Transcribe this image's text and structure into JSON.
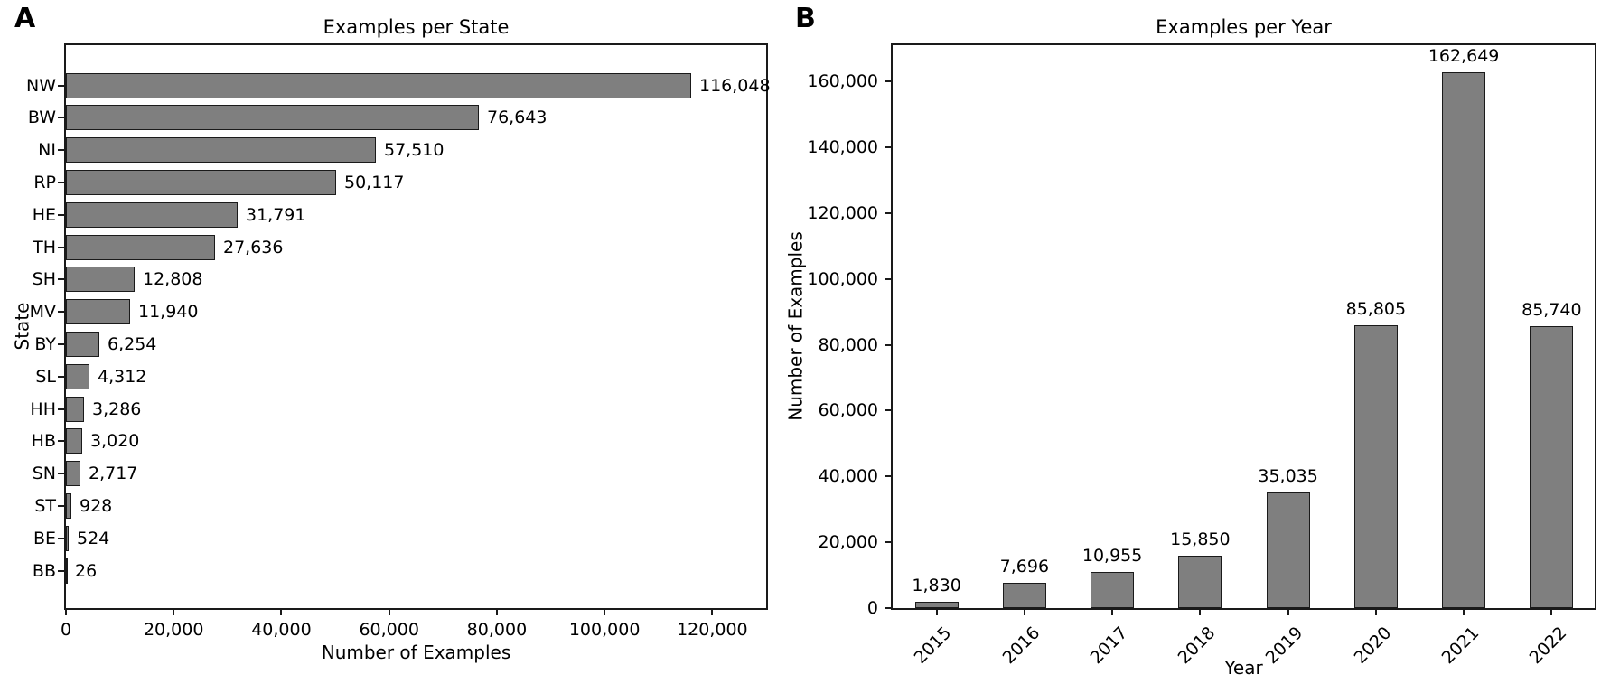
{
  "colors": {
    "background": "#ffffff",
    "bar_fill": "#7f7f7f",
    "bar_edge": "#1a1a1a",
    "axis": "#1a1a1a",
    "text": "#000000"
  },
  "chart_data": [
    {
      "id": "examples-per-state",
      "panel_label": "A",
      "type": "bar",
      "orientation": "horizontal",
      "title": "Examples per State",
      "xlabel": "Number of Examples",
      "ylabel": "State",
      "categories": [
        "NW",
        "BW",
        "NI",
        "RP",
        "HE",
        "TH",
        "SH",
        "MV",
        "BY",
        "SL",
        "HH",
        "HB",
        "SN",
        "ST",
        "BE",
        "BB"
      ],
      "values": [
        116048,
        76643,
        57510,
        50117,
        31791,
        27636,
        12808,
        11940,
        6254,
        4312,
        3286,
        3020,
        2717,
        928,
        524,
        26
      ],
      "value_labels": [
        "116,048",
        "76,643",
        "57,510",
        "50,117",
        "31,791",
        "27,636",
        "12,808",
        "11,940",
        "6,254",
        "4,312",
        "3,286",
        "3,020",
        "2,717",
        "928",
        "524",
        "26"
      ],
      "xlim": [
        0,
        130000
      ],
      "xticks": [
        0,
        20000,
        40000,
        60000,
        80000,
        100000,
        120000
      ],
      "xtick_labels": [
        "0",
        "20,000",
        "40,000",
        "60,000",
        "80,000",
        "100,000",
        "120,000"
      ],
      "grid": false,
      "legend": "none"
    },
    {
      "id": "examples-per-year",
      "panel_label": "B",
      "type": "bar",
      "orientation": "vertical",
      "title": "Examples per Year",
      "xlabel": "Year",
      "ylabel": "Number of Examples",
      "categories": [
        "2015",
        "2016",
        "2017",
        "2018",
        "2019",
        "2020",
        "2021",
        "2022"
      ],
      "values": [
        1830,
        7696,
        10955,
        15850,
        35035,
        85805,
        162649,
        85740
      ],
      "value_labels": [
        "1,830",
        "7,696",
        "10,955",
        "15,850",
        "35,035",
        "85,805",
        "162,649",
        "85,740"
      ],
      "ylim": [
        0,
        171000
      ],
      "yticks": [
        0,
        20000,
        40000,
        60000,
        80000,
        100000,
        120000,
        140000,
        160000
      ],
      "ytick_labels": [
        "0",
        "20,000",
        "40,000",
        "60,000",
        "80,000",
        "100,000",
        "120,000",
        "140,000",
        "160,000"
      ],
      "grid": false,
      "legend": "none"
    }
  ]
}
